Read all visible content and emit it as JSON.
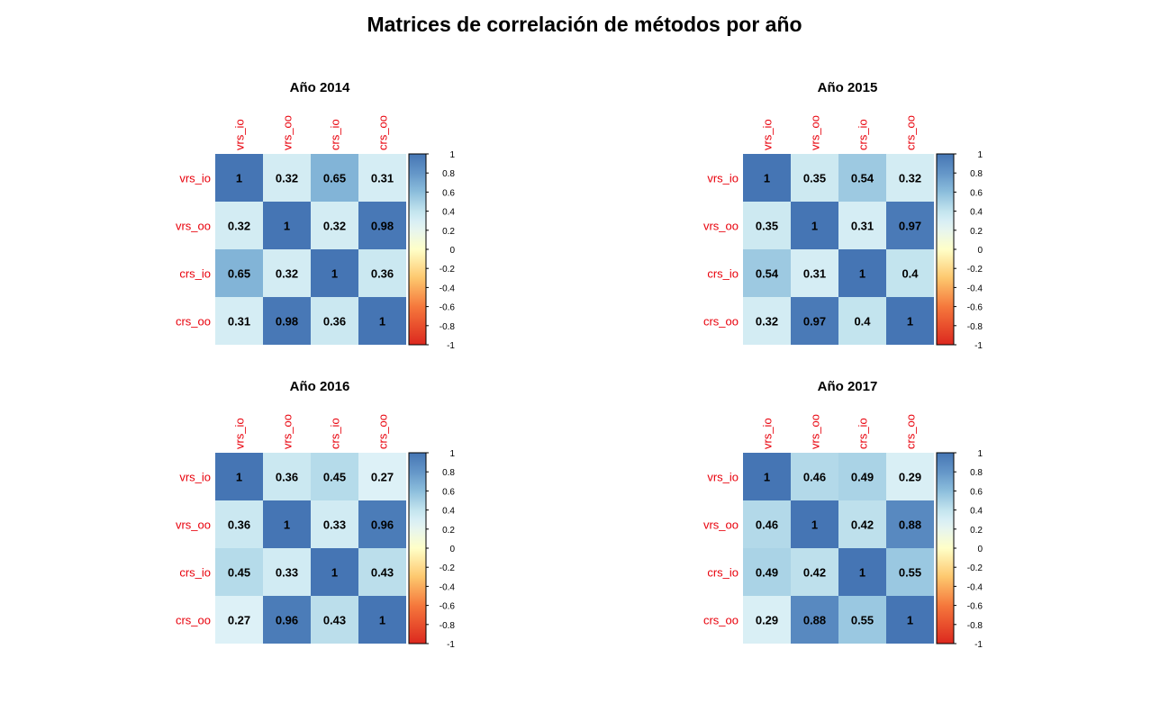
{
  "title": "Matrices de correlación de métodos por año",
  "chart_data": [
    {
      "type": "heatmap",
      "title": "Año 2014",
      "row_labels": [
        "vrs_io",
        "vrs_oo",
        "crs_io",
        "crs_oo"
      ],
      "col_labels": [
        "vrs_io",
        "vrs_oo",
        "crs_io",
        "crs_oo"
      ],
      "values": [
        [
          1,
          0.32,
          0.65,
          0.31
        ],
        [
          0.32,
          1,
          0.32,
          0.98
        ],
        [
          0.65,
          0.32,
          1,
          0.36
        ],
        [
          0.31,
          0.98,
          0.36,
          1
        ]
      ],
      "color_range": [
        -1,
        1
      ],
      "colorbar_ticks": [
        "1",
        "0.8",
        "0.6",
        "0.4",
        "0.2",
        "0",
        "-0.2",
        "-0.4",
        "-0.6",
        "-0.8",
        "-1"
      ]
    },
    {
      "type": "heatmap",
      "title": "Año 2015",
      "row_labels": [
        "vrs_io",
        "vrs_oo",
        "crs_io",
        "crs_oo"
      ],
      "col_labels": [
        "vrs_io",
        "vrs_oo",
        "crs_io",
        "crs_oo"
      ],
      "values": [
        [
          1,
          0.35,
          0.54,
          0.32
        ],
        [
          0.35,
          1,
          0.31,
          0.97
        ],
        [
          0.54,
          0.31,
          1,
          0.4
        ],
        [
          0.32,
          0.97,
          0.4,
          1
        ]
      ],
      "color_range": [
        -1,
        1
      ],
      "colorbar_ticks": [
        "1",
        "0.8",
        "0.6",
        "0.4",
        "0.2",
        "0",
        "-0.2",
        "-0.4",
        "-0.6",
        "-0.8",
        "-1"
      ]
    },
    {
      "type": "heatmap",
      "title": "Año 2016",
      "row_labels": [
        "vrs_io",
        "vrs_oo",
        "crs_io",
        "crs_oo"
      ],
      "col_labels": [
        "vrs_io",
        "vrs_oo",
        "crs_io",
        "crs_oo"
      ],
      "values": [
        [
          1,
          0.36,
          0.45,
          0.27
        ],
        [
          0.36,
          1,
          0.33,
          0.96
        ],
        [
          0.45,
          0.33,
          1,
          0.43
        ],
        [
          0.27,
          0.96,
          0.43,
          1
        ]
      ],
      "color_range": [
        -1,
        1
      ],
      "colorbar_ticks": [
        "1",
        "0.8",
        "0.6",
        "0.4",
        "0.2",
        "0",
        "-0.2",
        "-0.4",
        "-0.6",
        "-0.8",
        "-1"
      ]
    },
    {
      "type": "heatmap",
      "title": "Año 2017",
      "row_labels": [
        "vrs_io",
        "vrs_oo",
        "crs_io",
        "crs_oo"
      ],
      "col_labels": [
        "vrs_io",
        "vrs_oo",
        "crs_io",
        "crs_oo"
      ],
      "values": [
        [
          1,
          0.46,
          0.49,
          0.29
        ],
        [
          0.46,
          1,
          0.42,
          0.88
        ],
        [
          0.49,
          0.42,
          1,
          0.55
        ],
        [
          0.29,
          0.88,
          0.55,
          1
        ]
      ],
      "color_range": [
        -1,
        1
      ],
      "colorbar_ticks": [
        "1",
        "0.8",
        "0.6",
        "0.4",
        "0.2",
        "0",
        "-0.2",
        "-0.4",
        "-0.6",
        "-0.8",
        "-1"
      ]
    }
  ]
}
